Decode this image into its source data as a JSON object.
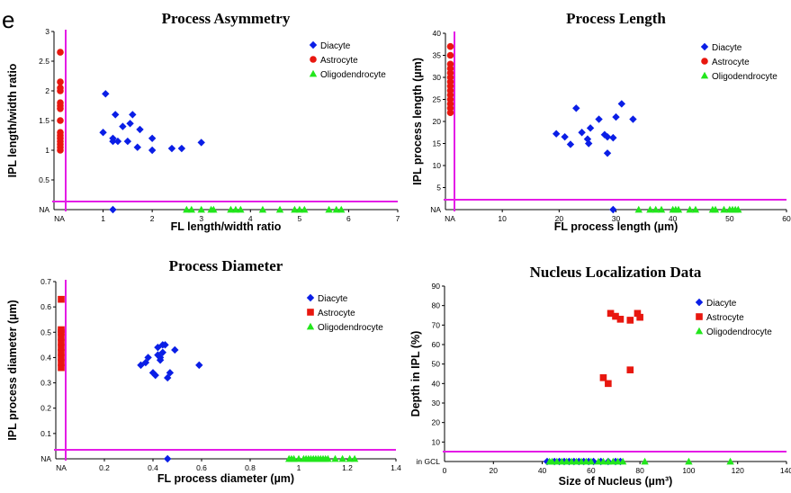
{
  "panel_letter": "e",
  "colors": {
    "diacyte": "#0a1ee6",
    "astrocyte": "#e8170f",
    "oligodendrocyte": "#22e61c",
    "na_line": "#e41ce6",
    "axis": "#000000"
  },
  "chart_data": [
    {
      "id": "asym",
      "type": "scatter",
      "title": "Process Asymmetry",
      "xlabel": "FL length/width ratio",
      "ylabel": "IPL length/width ratio",
      "xlim": [
        0,
        7
      ],
      "ylim": [
        0,
        3
      ],
      "xticks": [
        1,
        2,
        3,
        4,
        5,
        6,
        7
      ],
      "xtick_labels": [
        "1",
        "2",
        "3",
        "4",
        "5",
        "6",
        "7"
      ],
      "yticks": [
        0.5,
        1,
        1.5,
        2,
        2.5,
        3
      ],
      "ytick_labels": [
        "0.5",
        "1",
        "1.5",
        "2",
        "2.5",
        "3"
      ],
      "na_x_label": "NA",
      "na_y_label": "NA",
      "legend_position": "top-right",
      "series": [
        {
          "name": "Diacyte",
          "marker": "diamond",
          "color": "#0a1ee6",
          "points": [
            [
              1.0,
              1.3
            ],
            [
              1.05,
              1.95
            ],
            [
              1.2,
              1.15
            ],
            [
              1.2,
              1.2
            ],
            [
              1.25,
              1.6
            ],
            [
              1.3,
              1.15
            ],
            [
              1.4,
              1.4
            ],
            [
              1.5,
              1.15
            ],
            [
              1.55,
              1.45
            ],
            [
              1.6,
              1.6
            ],
            [
              1.7,
              1.05
            ],
            [
              1.75,
              1.35
            ],
            [
              2.0,
              1.2
            ],
            [
              2.0,
              1.0
            ],
            [
              2.4,
              1.03
            ],
            [
              2.6,
              1.03
            ],
            [
              3.0,
              1.13
            ]
          ],
          "na_y_x": [
            1.2
          ]
        },
        {
          "name": "Astrocyte",
          "marker": "circle",
          "color": "#e8170f",
          "na_x_y": [
            1.0,
            1.05,
            1.1,
            1.15,
            1.2,
            1.25,
            1.3,
            1.5,
            1.7,
            1.75,
            1.8,
            2.0,
            2.05,
            2.15,
            2.65
          ]
        },
        {
          "name": "Oligodendrocyte",
          "marker": "triangle",
          "color": "#22e61c",
          "na_y_x": [
            2.7,
            2.8,
            3.0,
            3.2,
            3.25,
            3.6,
            3.7,
            3.8,
            4.25,
            4.6,
            4.9,
            5.0,
            5.1,
            5.6,
            5.75,
            5.85
          ]
        }
      ]
    },
    {
      "id": "len",
      "type": "scatter",
      "title": "Process Length",
      "xlabel": "FL process length (µm)",
      "ylabel": "IPL process length (µm)",
      "xlim": [
        0,
        60
      ],
      "ylim": [
        0,
        40
      ],
      "xticks": [
        10,
        20,
        30,
        40,
        50,
        60
      ],
      "xtick_labels": [
        "10",
        "20",
        "30",
        "40",
        "50",
        "60"
      ],
      "yticks": [
        5,
        10,
        15,
        20,
        25,
        30,
        35,
        40
      ],
      "ytick_labels": [
        "5",
        "10",
        "15",
        "20",
        "25",
        "30",
        "35",
        "40"
      ],
      "na_x_label": "NA",
      "na_y_label": "NA",
      "legend_position": "top-right",
      "series": [
        {
          "name": "Diacyte",
          "marker": "diamond",
          "color": "#0a1ee6",
          "points": [
            [
              19.5,
              17.2
            ],
            [
              21,
              16.5
            ],
            [
              22,
              14.8
            ],
            [
              23,
              23.0
            ],
            [
              24,
              17.5
            ],
            [
              25,
              16.0
            ],
            [
              25.2,
              15.0
            ],
            [
              25.5,
              18.5
            ],
            [
              27,
              20.5
            ],
            [
              28,
              17.0
            ],
            [
              28.5,
              16.5
            ],
            [
              28.5,
              12.8
            ],
            [
              29.5,
              16.3
            ],
            [
              30,
              21.0
            ],
            [
              31,
              24.0
            ],
            [
              33,
              20.5
            ]
          ],
          "na_y_x": [
            29.5
          ]
        },
        {
          "name": "Astrocyte",
          "marker": "circle",
          "color": "#e8170f",
          "na_x_y": [
            22,
            23,
            24,
            25,
            26,
            27,
            28,
            29,
            30,
            31,
            32,
            33,
            35,
            37
          ]
        },
        {
          "name": "Oligodendrocyte",
          "marker": "triangle",
          "color": "#22e61c",
          "na_y_x": [
            34,
            36,
            37,
            38,
            40,
            40.5,
            41,
            43,
            44,
            47,
            47.5,
            49,
            50,
            50.5,
            51,
            51.5
          ]
        }
      ]
    },
    {
      "id": "diam",
      "type": "scatter",
      "title": "Process Diameter",
      "xlabel": "FL process diameter (µm)",
      "ylabel": "IPL process diameter (µm)",
      "xlim": [
        0,
        1.4
      ],
      "ylim": [
        0,
        0.7
      ],
      "xticks": [
        0.2,
        0.4,
        0.6,
        0.8,
        1.0,
        1.2,
        1.4
      ],
      "xtick_labels": [
        "0.2",
        "0.4",
        "0.6",
        "0.8",
        "1",
        "1.2",
        "1.4"
      ],
      "yticks": [
        0.1,
        0.2,
        0.3,
        0.4,
        0.5,
        0.6,
        0.7
      ],
      "ytick_labels": [
        "0.1",
        "0.2",
        "0.3",
        "0.4",
        "0.5",
        "0.6",
        "0.7"
      ],
      "na_x_label": "NA",
      "na_y_label": "NA",
      "legend_position": "top-right",
      "series": [
        {
          "name": "Diacyte",
          "marker": "diamond",
          "color": "#0a1ee6",
          "points": [
            [
              0.35,
              0.37
            ],
            [
              0.37,
              0.38
            ],
            [
              0.38,
              0.4
            ],
            [
              0.4,
              0.34
            ],
            [
              0.41,
              0.33
            ],
            [
              0.42,
              0.41
            ],
            [
              0.42,
              0.44
            ],
            [
              0.43,
              0.39
            ],
            [
              0.43,
              0.4
            ],
            [
              0.44,
              0.45
            ],
            [
              0.44,
              0.42
            ],
            [
              0.45,
              0.45
            ],
            [
              0.46,
              0.32
            ],
            [
              0.47,
              0.34
            ],
            [
              0.49,
              0.43
            ],
            [
              0.59,
              0.37
            ]
          ],
          "na_y_x": [
            0.46
          ]
        },
        {
          "name": "Astrocyte",
          "marker": "square",
          "color": "#e8170f",
          "na_x_y": [
            0.36,
            0.38,
            0.4,
            0.42,
            0.44,
            0.46,
            0.48,
            0.5,
            0.51,
            0.63
          ]
        },
        {
          "name": "Oligodendrocyte",
          "marker": "triangle",
          "color": "#22e61c",
          "na_y_x": [
            0.96,
            0.97,
            0.98,
            1.0,
            1.02,
            1.03,
            1.04,
            1.05,
            1.06,
            1.07,
            1.08,
            1.09,
            1.1,
            1.11,
            1.12,
            1.15,
            1.18,
            1.21,
            1.23
          ]
        }
      ]
    },
    {
      "id": "nuc",
      "type": "scatter",
      "title": "Nucleus Localization Data",
      "xlabel": "Size of Nucleus (µm³)",
      "ylabel": "Depth in IPL (%)",
      "xlim": [
        0,
        140
      ],
      "ylim": [
        0,
        90
      ],
      "xticks": [
        20,
        40,
        60,
        80,
        100,
        120,
        140
      ],
      "xtick_labels": [
        "20",
        "40",
        "60",
        "80",
        "100",
        "120",
        "140"
      ],
      "yticks": [
        10,
        20,
        30,
        40,
        50,
        60,
        70,
        80,
        90
      ],
      "ytick_labels": [
        "10",
        "20",
        "30",
        "40",
        "50",
        "60",
        "70",
        "80",
        "90"
      ],
      "origin_x_label": "0",
      "na_y_label": "in GCL",
      "legend_position": "top-right",
      "series": [
        {
          "name": "Diacyte",
          "marker": "diamond",
          "color": "#0a1ee6",
          "na_y_x": [
            42,
            45,
            47,
            49,
            51,
            53,
            55,
            57,
            59,
            61,
            64,
            67,
            70,
            72
          ]
        },
        {
          "name": "Astrocyte",
          "marker": "square",
          "color": "#e8170f",
          "points": [
            [
              65,
              43
            ],
            [
              67,
              40
            ],
            [
              68,
              76
            ],
            [
              70,
              74.5
            ],
            [
              72,
              73
            ],
            [
              76,
              72.5
            ],
            [
              76,
              47
            ],
            [
              79,
              76
            ],
            [
              80,
              74
            ]
          ]
        },
        {
          "name": "Oligodendrocyte",
          "marker": "triangle",
          "color": "#22e61c",
          "na_y_x": [
            43,
            44,
            46,
            48,
            50,
            52,
            54,
            56,
            58,
            60,
            63,
            65,
            67,
            69,
            71,
            73,
            82,
            100,
            117
          ]
        }
      ]
    }
  ]
}
